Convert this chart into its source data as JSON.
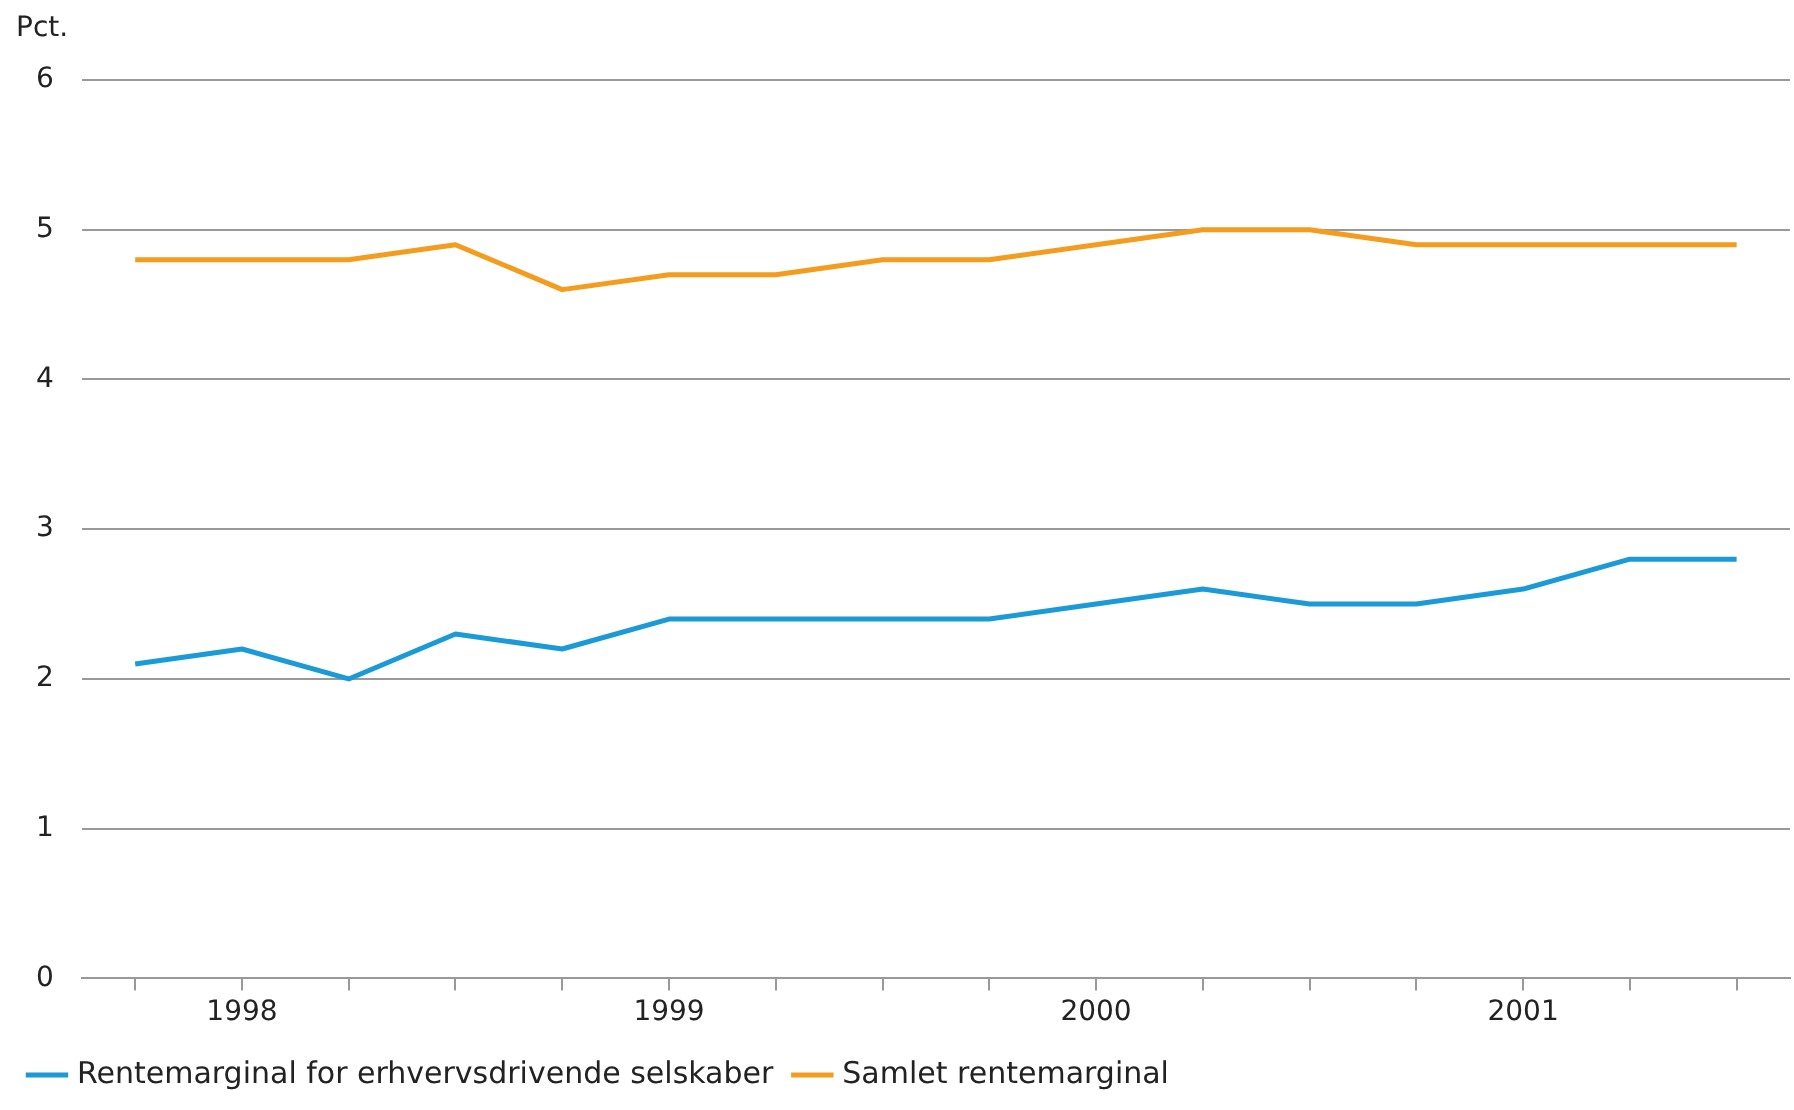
{
  "chart_data": {
    "type": "line",
    "ylabel": "Pct.",
    "categories": [
      null,
      "1998",
      null,
      null,
      null,
      "1999",
      null,
      null,
      null,
      "2000",
      null,
      null,
      null,
      "2001",
      null,
      null
    ],
    "series": [
      {
        "name": "Rentemarginal for erhvervsdrivende selskaber",
        "color": "#1a9ad6",
        "values": [
          2.1,
          2.2,
          2.0,
          2.3,
          2.2,
          2.4,
          2.4,
          2.4,
          2.4,
          2.5,
          2.6,
          2.5,
          2.5,
          2.6,
          2.8,
          2.8
        ]
      },
      {
        "name": "Samlet rentemarginal",
        "color": "#f39c1e",
        "values": [
          4.8,
          4.8,
          4.8,
          4.9,
          4.6,
          4.7,
          4.7,
          4.8,
          4.8,
          4.9,
          5.0,
          5.0,
          4.9,
          4.9,
          4.9,
          4.9
        ]
      }
    ],
    "ylim": [
      0,
      6
    ],
    "yticks": [
      0,
      1,
      2,
      3,
      4,
      5,
      6
    ],
    "grid": "y",
    "legend": "bottom",
    "marker": "none",
    "line_style": "solid"
  }
}
